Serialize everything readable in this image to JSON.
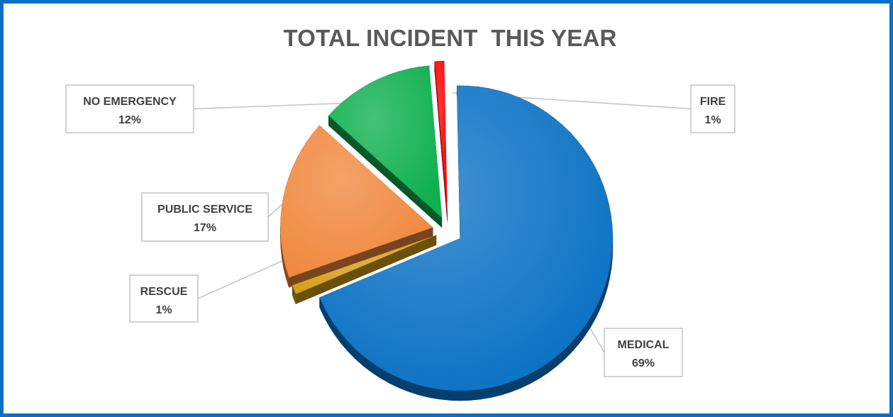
{
  "chart_data": {
    "type": "pie",
    "title": "TOTAL INCIDENT  THIS YEAR",
    "slices": [
      {
        "label": "MEDICAL",
        "value": 69,
        "display": "69%",
        "color": "#0b72c4"
      },
      {
        "label": "RESCUE",
        "value": 1,
        "display": "1%",
        "color": "#d4a017"
      },
      {
        "label": "PUBLIC SERVICE",
        "value": 17,
        "display": "17%",
        "color": "#f0883e"
      },
      {
        "label": "NO EMERGENCY",
        "value": 12,
        "display": "12%",
        "color": "#0fb04f"
      },
      {
        "label": "FIRE",
        "value": 1,
        "display": "1%",
        "color": "#ff0000"
      }
    ],
    "legend": "none",
    "labels": "callouts"
  },
  "colors": {
    "frame_border": "#0a6fc2",
    "title_text": "#595959",
    "label_text": "#404040",
    "callout_border": "#bfbfbf"
  }
}
